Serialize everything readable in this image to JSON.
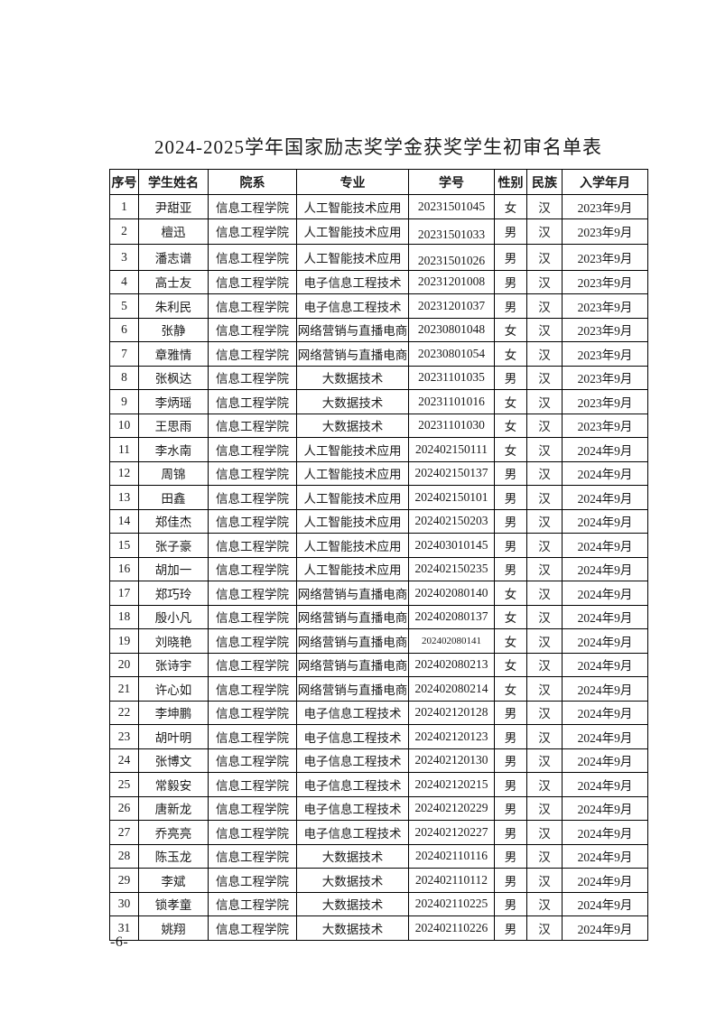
{
  "page": {
    "title": "2024-2025学年国家励志奖学金获奖学生初审名单表",
    "page_number": "-6-"
  },
  "table": {
    "headers": [
      "序号",
      "学生姓名",
      "院系",
      "专业",
      "学号",
      "性别",
      "民族",
      "入学年月"
    ],
    "rows": [
      [
        "1",
        "尹甜亚",
        "信息工程学院",
        "人工智能技术应用",
        "20231501045",
        "女",
        "汉",
        "2023年9月"
      ],
      [
        "2",
        "檀迅",
        "信息工程学院",
        "人工智能技术应用",
        "20231501033",
        "男",
        "汉",
        "2023年9月"
      ],
      [
        "3",
        "潘志谱",
        "信息工程学院",
        "人工智能技术应用",
        "20231501026",
        "男",
        "汉",
        "2023年9月"
      ],
      [
        "4",
        "高士友",
        "信息工程学院",
        "电子信息工程技术",
        "20231201008",
        "男",
        "汉",
        "2023年9月"
      ],
      [
        "5",
        "朱利民",
        "信息工程学院",
        "电子信息工程技术",
        "20231201037",
        "男",
        "汉",
        "2023年9月"
      ],
      [
        "6",
        "张静",
        "信息工程学院",
        "网络营销与直播电商",
        "20230801048",
        "女",
        "汉",
        "2023年9月"
      ],
      [
        "7",
        "章雅情",
        "信息工程学院",
        "网络营销与直播电商",
        "20230801054",
        "女",
        "汉",
        "2023年9月"
      ],
      [
        "8",
        "张枫达",
        "信息工程学院",
        "大数据技术",
        "20231101035",
        "男",
        "汉",
        "2023年9月"
      ],
      [
        "9",
        "李炳瑶",
        "信息工程学院",
        "大数据技术",
        "20231101016",
        "女",
        "汉",
        "2023年9月"
      ],
      [
        "10",
        "王思雨",
        "信息工程学院",
        "大数据技术",
        "20231101030",
        "女",
        "汉",
        "2023年9月"
      ],
      [
        "11",
        "李水南",
        "信息工程学院",
        "人工智能技术应用",
        "202402150111",
        "女",
        "汉",
        "2024年9月"
      ],
      [
        "12",
        "周锦",
        "信息工程学院",
        "人工智能技术应用",
        "202402150137",
        "男",
        "汉",
        "2024年9月"
      ],
      [
        "13",
        "田鑫",
        "信息工程学院",
        "人工智能技术应用",
        "202402150101",
        "男",
        "汉",
        "2024年9月"
      ],
      [
        "14",
        "郑佳杰",
        "信息工程学院",
        "人工智能技术应用",
        "202402150203",
        "男",
        "汉",
        "2024年9月"
      ],
      [
        "15",
        "张子豪",
        "信息工程学院",
        "人工智能技术应用",
        "202403010145",
        "男",
        "汉",
        "2024年9月"
      ],
      [
        "16",
        "胡加一",
        "信息工程学院",
        "人工智能技术应用",
        "202402150235",
        "男",
        "汉",
        "2024年9月"
      ],
      [
        "17",
        "郑巧玲",
        "信息工程学院",
        "网络营销与直播电商",
        "202402080140",
        "女",
        "汉",
        "2024年9月"
      ],
      [
        "18",
        "殷小凡",
        "信息工程学院",
        "网络营销与直播电商",
        "202402080137",
        "女",
        "汉",
        "2024年9月"
      ],
      [
        "19",
        "刘晓艳",
        "信息工程学院",
        "网络营销与直播电商",
        "202402080141",
        "女",
        "汉",
        "2024年9月"
      ],
      [
        "20",
        "张诗宇",
        "信息工程学院",
        "网络营销与直播电商",
        "202402080213",
        "女",
        "汉",
        "2024年9月"
      ],
      [
        "21",
        "许心如",
        "信息工程学院",
        "网络营销与直播电商",
        "202402080214",
        "女",
        "汉",
        "2024年9月"
      ],
      [
        "22",
        "李坤鹏",
        "信息工程学院",
        "电子信息工程技术",
        "202402120128",
        "男",
        "汉",
        "2024年9月"
      ],
      [
        "23",
        "胡叶明",
        "信息工程学院",
        "电子信息工程技术",
        "202402120123",
        "男",
        "汉",
        "2024年9月"
      ],
      [
        "24",
        "张博文",
        "信息工程学院",
        "电子信息工程技术",
        "202402120130",
        "男",
        "汉",
        "2024年9月"
      ],
      [
        "25",
        "常毅安",
        "信息工程学院",
        "电子信息工程技术",
        "202402120215",
        "男",
        "汉",
        "2024年9月"
      ],
      [
        "26",
        "唐新龙",
        "信息工程学院",
        "电子信息工程技术",
        "202402120229",
        "男",
        "汉",
        "2024年9月"
      ],
      [
        "27",
        "乔亮亮",
        "信息工程学院",
        "电子信息工程技术",
        "202402120227",
        "男",
        "汉",
        "2024年9月"
      ],
      [
        "28",
        "陈玉龙",
        "信息工程学院",
        "大数据技术",
        "202402110116",
        "男",
        "汉",
        "2024年9月"
      ],
      [
        "29",
        "李斌",
        "信息工程学院",
        "大数据技术",
        "202402110112",
        "男",
        "汉",
        "2024年9月"
      ],
      [
        "30",
        "锁孝童",
        "信息工程学院",
        "大数据技术",
        "202402110225",
        "男",
        "汉",
        "2024年9月"
      ],
      [
        "31",
        "姚翔",
        "信息工程学院",
        "大数据技术",
        "202402110226",
        "男",
        "汉",
        "2024年9月"
      ]
    ]
  }
}
